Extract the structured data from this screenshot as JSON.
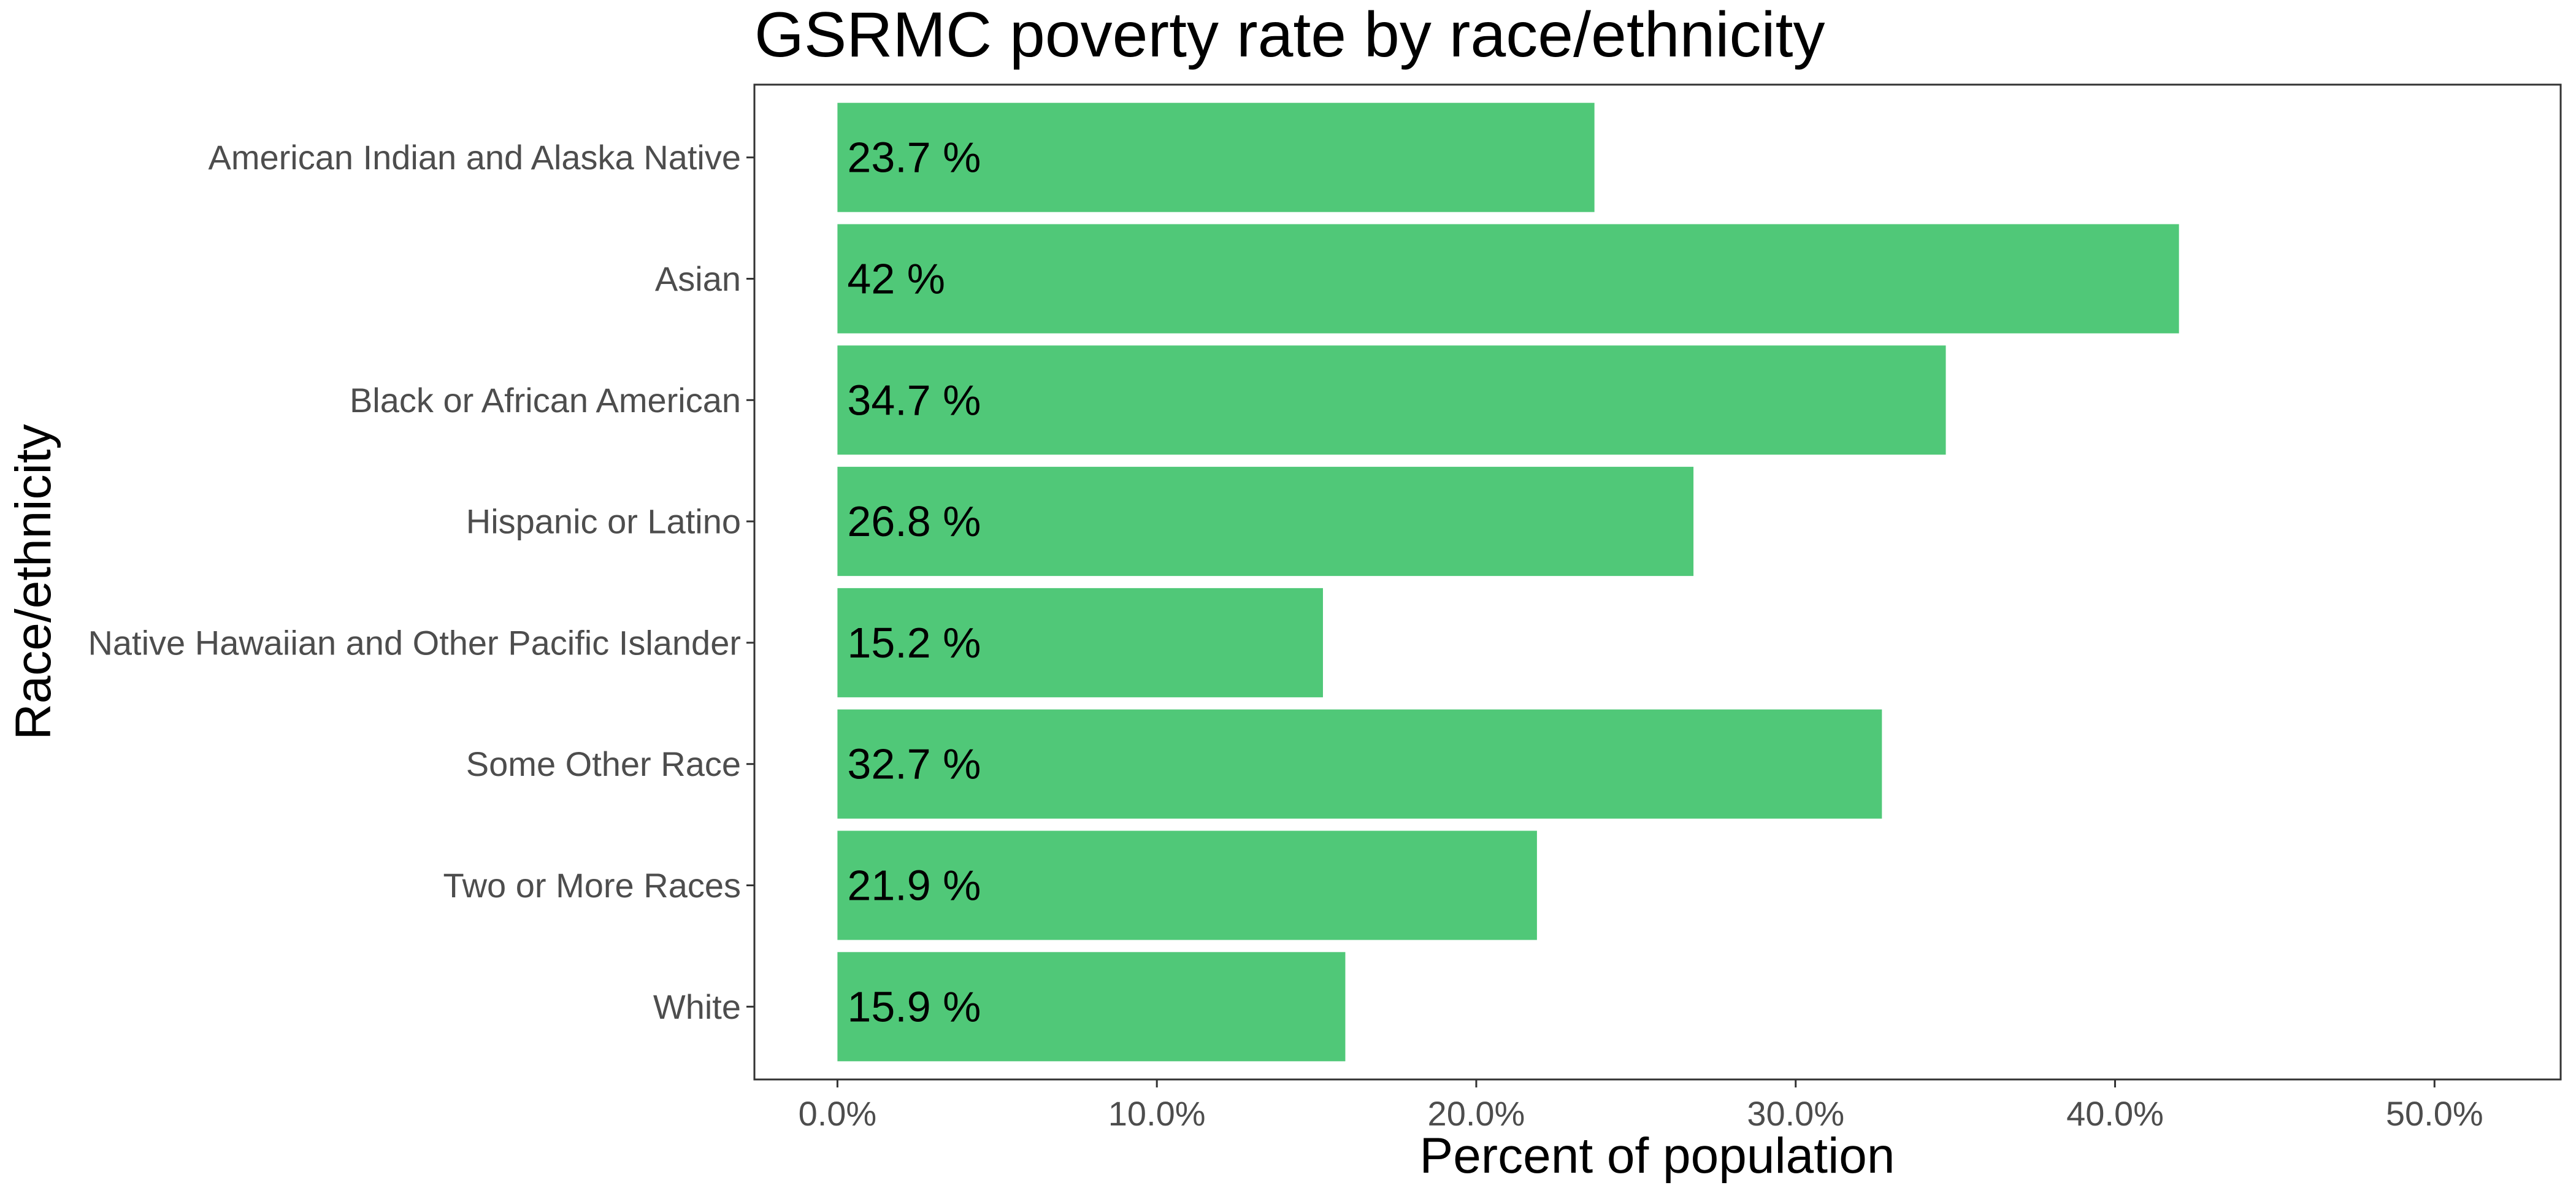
{
  "chart_data": {
    "type": "bar",
    "orientation": "horizontal",
    "title": "GSRMC poverty rate by race/ethnicity",
    "xlabel": "Percent of population",
    "ylabel": "Race/ethnicity",
    "categories": [
      "American Indian and Alaska Native",
      "Asian",
      "Black or African American",
      "Hispanic or Latino",
      "Native Hawaiian and Other Pacific Islander",
      "Some Other Race",
      "Two or More Races",
      "White"
    ],
    "values": [
      23.7,
      42,
      34.7,
      26.8,
      15.2,
      32.7,
      21.9,
      15.9
    ],
    "data_labels": [
      "23.7 %",
      "42 %",
      "34.7 %",
      "26.8 %",
      "15.2 %",
      "32.7 %",
      "21.9 %",
      "15.9 %"
    ],
    "x_ticks": [
      0,
      10,
      20,
      30,
      40,
      50
    ],
    "x_tick_labels": [
      "0.0%",
      "10.0%",
      "20.0%",
      "30.0%",
      "40.0%",
      "50.0%"
    ],
    "xlim": [
      -2.6,
      53.95
    ],
    "grid": false,
    "legend": "none",
    "colors": {
      "bar": "#50c878",
      "panel_border": "#333333",
      "tick_text": "#4d4d4d"
    }
  }
}
